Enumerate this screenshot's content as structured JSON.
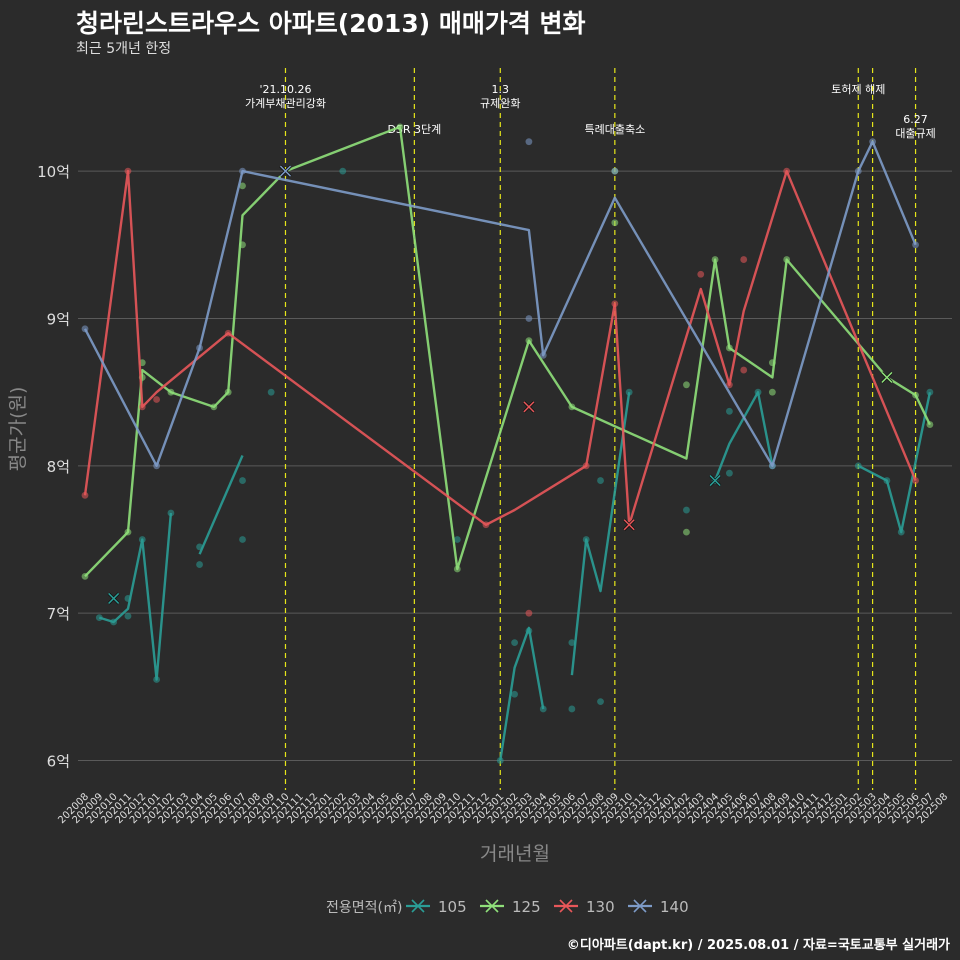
{
  "title": "청라린스트라우스 아파트(2013) 매매가격 변화",
  "subtitle": "최근 5개년 한정",
  "caption": "©디아파트(dapt.kr) / 2025.08.01 / 자료=국토교통부 실거래가",
  "colors": {
    "background": "#2b2b2b",
    "grid": "#5a5a5a",
    "vline": "#e6e61a",
    "s105": "#2a9d96",
    "s125": "#8fe07a",
    "s130": "#e8575a",
    "s140": "#7d9bc8"
  },
  "chart_data": {
    "type": "line",
    "xlabel": "거래년월",
    "ylabel": "평균가(원)",
    "legend_title": "전용면적(㎡)",
    "legend_position": "bottom",
    "x_categories": [
      "202008",
      "202009",
      "202010",
      "202011",
      "202012",
      "202101",
      "202102",
      "202103",
      "202104",
      "202105",
      "202106",
      "202107",
      "202108",
      "202109",
      "202110",
      "202111",
      "202112",
      "202201",
      "202202",
      "202203",
      "202204",
      "202205",
      "202206",
      "202207",
      "202208",
      "202209",
      "202210",
      "202211",
      "202212",
      "202301",
      "202302",
      "202303",
      "202304",
      "202305",
      "202306",
      "202307",
      "202308",
      "202309",
      "202310",
      "202311",
      "202312",
      "202401",
      "202402",
      "202403",
      "202404",
      "202405",
      "202406",
      "202407",
      "202408",
      "202409",
      "202410",
      "202411",
      "202412",
      "202501",
      "202502",
      "202503",
      "202504",
      "202505",
      "202506",
      "202507",
      "202508"
    ],
    "y_ticks": [
      {
        "v": 6,
        "label": "6억"
      },
      {
        "v": 7,
        "label": "7억"
      },
      {
        "v": 8,
        "label": "8억"
      },
      {
        "v": 9,
        "label": "9억"
      },
      {
        "v": 10,
        "label": "10억"
      }
    ],
    "ylim": [
      5.8,
      10.7
    ],
    "events": [
      {
        "x": "202110",
        "label": "'21.10.26\n가계부채관리강화",
        "row": 0
      },
      {
        "x": "202207",
        "label": "DSR 3단계",
        "row": 1
      },
      {
        "x": "202301",
        "label": "1.3\n규제완화",
        "row": 0
      },
      {
        "x": "202309",
        "label": "특례대출축소",
        "row": 1
      },
      {
        "x": "202502",
        "label": "토허제 해제",
        "row": 0
      },
      {
        "x": "202503",
        "label": "",
        "row": 0
      },
      {
        "x": "202506",
        "label": "6.27\n대출규제",
        "row": 2
      }
    ],
    "series": [
      {
        "name": "105",
        "key": "s105",
        "segments": [
          [
            [
              "202009",
              6.97
            ],
            [
              "202010",
              6.94
            ],
            [
              "202011",
              7.03
            ],
            [
              "202012",
              7.5
            ],
            [
              "202101",
              6.55
            ],
            [
              "202102",
              7.68
            ]
          ],
          [
            [
              "202104",
              7.4
            ],
            [
              "202107",
              8.07
            ]
          ],
          [
            [
              "202301",
              6.0
            ],
            [
              "202302",
              6.63
            ],
            [
              "202303",
              6.9
            ],
            [
              "202304",
              6.35
            ]
          ],
          [
            [
              "202306",
              6.58
            ],
            [
              "202307",
              7.5
            ],
            [
              "202308",
              7.15
            ],
            [
              "202310",
              8.5
            ]
          ],
          [
            [
              "202404",
              7.9
            ],
            [
              "202405",
              8.15
            ],
            [
              "202407",
              8.5
            ],
            [
              "202408",
              8.0
            ]
          ],
          [
            [
              "202502",
              8.0
            ],
            [
              "202504",
              7.9
            ],
            [
              "202505",
              7.55
            ],
            [
              "202507",
              8.5
            ]
          ]
        ],
        "points": [
          [
            "202009",
            6.97
          ],
          [
            "202010",
            6.94
          ],
          [
            "202011",
            6.98
          ],
          [
            "202011",
            7.1
          ],
          [
            "202012",
            7.5
          ],
          [
            "202101",
            6.55
          ],
          [
            "202102",
            7.68
          ],
          [
            "202104",
            7.45
          ],
          [
            "202104",
            7.33
          ],
          [
            "202107",
            7.5
          ],
          [
            "202107",
            7.9
          ],
          [
            "202109",
            8.5
          ],
          [
            "202202",
            10.0
          ],
          [
            "202210",
            7.5
          ],
          [
            "202301",
            6.0
          ],
          [
            "202302",
            6.8
          ],
          [
            "202302",
            6.45
          ],
          [
            "202303",
            6.88
          ],
          [
            "202304",
            6.35
          ],
          [
            "202306",
            6.8
          ],
          [
            "202306",
            6.35
          ],
          [
            "202307",
            7.5
          ],
          [
            "202308",
            7.9
          ],
          [
            "202308",
            6.4
          ],
          [
            "202310",
            8.5
          ],
          [
            "202402",
            7.7
          ],
          [
            "202404",
            7.9
          ],
          [
            "202405",
            7.95
          ],
          [
            "202405",
            8.37
          ],
          [
            "202407",
            8.5
          ],
          [
            "202408",
            8.0
          ],
          [
            "202502",
            8.0
          ],
          [
            "202504",
            7.9
          ],
          [
            "202505",
            7.55
          ],
          [
            "202507",
            8.5
          ]
        ],
        "crosses": [
          [
            "202010",
            7.1
          ],
          [
            "202404",
            7.9
          ]
        ]
      },
      {
        "name": "125",
        "key": "s125",
        "segments": [
          [
            [
              "202008",
              7.25
            ],
            [
              "202011",
              7.55
            ],
            [
              "202012",
              8.65
            ],
            [
              "202102",
              8.5
            ],
            [
              "202105",
              8.4
            ],
            [
              "202106",
              8.5
            ],
            [
              "202107",
              9.7
            ],
            [
              "202110",
              10.0
            ],
            [
              "202206",
              10.3
            ],
            [
              "202210",
              7.3
            ],
            [
              "202303",
              8.85
            ],
            [
              "202306",
              8.4
            ],
            [
              "202402",
              8.05
            ],
            [
              "202404",
              9.4
            ],
            [
              "202405",
              8.8
            ],
            [
              "202408",
              8.6
            ],
            [
              "202409",
              9.4
            ],
            [
              "202504",
              8.6
            ],
            [
              "202506",
              8.48
            ],
            [
              "202507",
              8.28
            ]
          ]
        ],
        "points": [
          [
            "202008",
            7.25
          ],
          [
            "202011",
            7.55
          ],
          [
            "202012",
            8.7
          ],
          [
            "202012",
            8.6
          ],
          [
            "202102",
            8.5
          ],
          [
            "202105",
            8.4
          ],
          [
            "202106",
            8.5
          ],
          [
            "202107",
            9.9
          ],
          [
            "202107",
            9.5
          ],
          [
            "202206",
            10.3
          ],
          [
            "202210",
            7.3
          ],
          [
            "202303",
            8.85
          ],
          [
            "202306",
            8.4
          ],
          [
            "202309",
            9.65
          ],
          [
            "202309",
            10.0
          ],
          [
            "202402",
            7.55
          ],
          [
            "202402",
            8.55
          ],
          [
            "202404",
            9.4
          ],
          [
            "202405",
            8.8
          ],
          [
            "202408",
            8.7
          ],
          [
            "202408",
            8.5
          ],
          [
            "202409",
            9.4
          ],
          [
            "202506",
            8.48
          ],
          [
            "202507",
            8.28
          ]
        ],
        "crosses": [
          [
            "202110",
            10.0
          ],
          [
            "202504",
            8.6
          ]
        ]
      },
      {
        "name": "130",
        "key": "s130",
        "segments": [
          [
            [
              "202008",
              7.8
            ],
            [
              "202011",
              10.0
            ],
            [
              "202012",
              8.4
            ],
            [
              "202101",
              8.5
            ],
            [
              "202106",
              8.9
            ],
            [
              "202212",
              7.6
            ],
            [
              "202302",
              7.7
            ],
            [
              "202307",
              8.0
            ],
            [
              "202309",
              9.1
            ],
            [
              "202310",
              7.6
            ],
            [
              "202403",
              9.2
            ],
            [
              "202405",
              8.55
            ],
            [
              "202406",
              9.05
            ],
            [
              "202409",
              10.0
            ],
            [
              "202506",
              7.9
            ]
          ]
        ],
        "points": [
          [
            "202008",
            7.8
          ],
          [
            "202011",
            10.0
          ],
          [
            "202012",
            8.4
          ],
          [
            "202101",
            8.45
          ],
          [
            "202106",
            8.9
          ],
          [
            "202212",
            7.6
          ],
          [
            "202303",
            7.0
          ],
          [
            "202307",
            8.0
          ],
          [
            "202309",
            9.1
          ],
          [
            "202403",
            9.3
          ],
          [
            "202405",
            8.55
          ],
          [
            "202406",
            8.65
          ],
          [
            "202406",
            9.4
          ],
          [
            "202409",
            10.0
          ],
          [
            "202506",
            7.9
          ]
        ],
        "crosses": [
          [
            "202303",
            8.4
          ],
          [
            "202310",
            7.6
          ]
        ]
      },
      {
        "name": "140",
        "key": "s140",
        "segments": [
          [
            [
              "202008",
              8.93
            ],
            [
              "202101",
              8.0
            ],
            [
              "202104",
              8.8
            ],
            [
              "202107",
              10.0
            ],
            [
              "202303",
              9.6
            ],
            [
              "202304",
              8.75
            ],
            [
              "202309",
              9.82
            ],
            [
              "202408",
              8.0
            ],
            [
              "202502",
              10.0
            ],
            [
              "202503",
              10.2
            ],
            [
              "202506",
              9.5
            ]
          ]
        ],
        "points": [
          [
            "202008",
            8.93
          ],
          [
            "202101",
            8.0
          ],
          [
            "202104",
            8.8
          ],
          [
            "202107",
            10.0
          ],
          [
            "202303",
            9.0
          ],
          [
            "202303",
            10.2
          ],
          [
            "202304",
            8.75
          ],
          [
            "202309",
            10.0
          ],
          [
            "202408",
            8.0
          ],
          [
            "202502",
            10.0
          ],
          [
            "202503",
            10.2
          ],
          [
            "202506",
            9.5
          ]
        ],
        "crosses": [
          [
            "202110",
            10.0
          ]
        ]
      }
    ]
  }
}
